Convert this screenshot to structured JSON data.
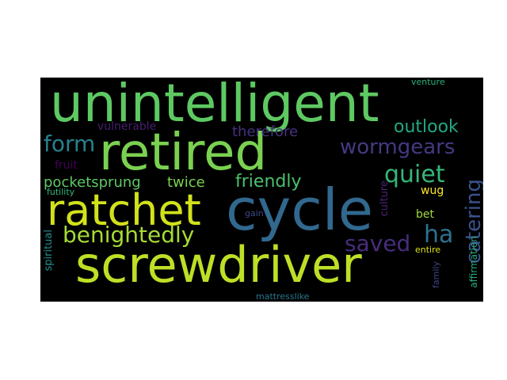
{
  "words": {
    "unintelligent": {
      "text": "unintelligent",
      "color": "#5ec962"
    },
    "retired": {
      "text": "retired",
      "color": "#7ad151"
    },
    "cycle": {
      "text": "cycle",
      "color": "#31688e"
    },
    "screwdriver": {
      "text": "screwdriver",
      "color": "#bddf26"
    },
    "ratchet": {
      "text": "ratchet",
      "color": "#d2e21b"
    },
    "benightedly": {
      "text": "benightedly",
      "color": "#a5db36"
    },
    "wormgears": {
      "text": "wormgears",
      "color": "#443983"
    },
    "form": {
      "text": "form",
      "color": "#26828e"
    },
    "outlook": {
      "text": "outlook",
      "color": "#22a884"
    },
    "quiet": {
      "text": "quiet",
      "color": "#35b779"
    },
    "catering": {
      "text": "catering",
      "color": "#3b528b"
    },
    "ha": {
      "text": "ha",
      "color": "#2c728e"
    },
    "saved": {
      "text": "saved",
      "color": "#472d7b"
    },
    "friendly": {
      "text": "friendly",
      "color": "#4ac16d"
    },
    "therefore": {
      "text": "therefore",
      "color": "#46327e"
    },
    "pocketsprung": {
      "text": "pocketsprung",
      "color": "#5ec962"
    },
    "twice": {
      "text": "twice",
      "color": "#7ad151"
    },
    "vulnerable": {
      "text": "vulnerable",
      "color": "#481f70"
    },
    "fruit": {
      "text": "fruit",
      "color": "#440154"
    },
    "futility": {
      "text": "futility",
      "color": "#35b779"
    },
    "wug": {
      "text": "wug",
      "color": "#fde725"
    },
    "culture": {
      "text": "culture",
      "color": "#482475"
    },
    "gain": {
      "text": "gain",
      "color": "#3e4a89"
    },
    "bet": {
      "text": "bet",
      "color": "#a0da39"
    },
    "entire": {
      "text": "entire",
      "color": "#dde318"
    },
    "family": {
      "text": "family",
      "color": "#414487"
    },
    "affirmation": {
      "text": "affirmation",
      "color": "#27ad81"
    },
    "spiritual": {
      "text": "spiritual",
      "color": "#21918c"
    },
    "mattresslike": {
      "text": "mattresslike",
      "color": "#2a788e"
    },
    "venture": {
      "text": "venture",
      "color": "#2db27d"
    }
  }
}
